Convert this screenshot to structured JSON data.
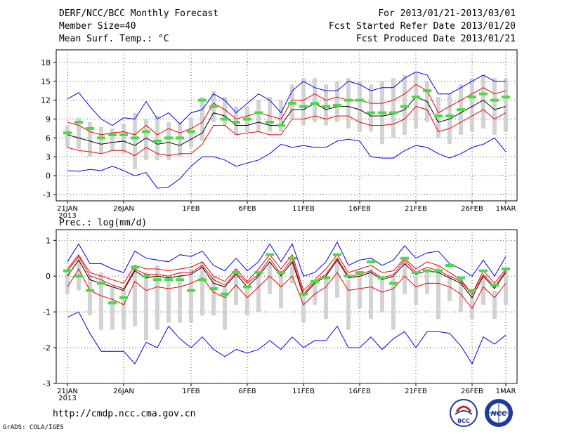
{
  "header": {
    "title": "DERF/NCC/BCC Monthly Forecast",
    "member_size": "Member Size=40",
    "variable_top": "Mean Surf. Temp.: °C",
    "forecast_range": "For 2013/01/21-2013/03/01",
    "started_date": "Fcst Started Refer Date 2013/01/20",
    "produced_date": "Fcst Produced Date 2013/01/21"
  },
  "footer": {
    "url": "http://cmdp.ncc.cma.gov.cn",
    "grads": "GrADS: COLA/IGES",
    "logo_bcc": "BCC",
    "logo_ncc": "NCC"
  },
  "colors": {
    "max_min": "#0000ee",
    "spread": "#ee0000",
    "mean": "#000000",
    "obs": "#44dd44",
    "box": "#d3d3d3",
    "grid": "#555555"
  },
  "chart_data": [
    {
      "type": "line",
      "title": "Mean Surf. Temp.: °C",
      "x_tick_labels": [
        "21JAN",
        "26JAN",
        "1FEB",
        "6FEB",
        "11FEB",
        "16FEB",
        "21FEB",
        "26FEB",
        "1MAR"
      ],
      "x_year_label": "2013",
      "x_tick_days": [
        0,
        5,
        11,
        16,
        21,
        26,
        31,
        36,
        39
      ],
      "n_days": 40,
      "yticks": [
        -3,
        0,
        3,
        6,
        9,
        12,
        15,
        18
      ],
      "ylim": [
        -4,
        20
      ],
      "series": [
        {
          "name": "max",
          "values": [
            12.2,
            13.2,
            11.0,
            9.0,
            8.0,
            9.2,
            9.0,
            11.8,
            9.0,
            10.0,
            8.2,
            10.0,
            10.5,
            13.0,
            12.0,
            10.0,
            11.5,
            13.0,
            12.0,
            10.0,
            13.5,
            15.0,
            14.0,
            13.5,
            13.5,
            15.0,
            14.5,
            13.5,
            14.0,
            14.0,
            15.5,
            16.5,
            16.0,
            13.0,
            13.0,
            14.0,
            15.0,
            16.0,
            15.0,
            15.0
          ]
        },
        {
          "name": "upper",
          "values": [
            8.5,
            8.0,
            7.0,
            6.5,
            6.8,
            7.0,
            6.5,
            8.0,
            6.5,
            7.5,
            6.8,
            7.5,
            8.5,
            11.5,
            10.5,
            9.0,
            9.5,
            10.0,
            9.5,
            9.0,
            12.0,
            12.0,
            13.0,
            12.0,
            12.5,
            12.0,
            12.0,
            11.5,
            11.5,
            12.0,
            13.0,
            14.5,
            13.5,
            10.0,
            11.0,
            12.0,
            13.0,
            14.0,
            13.0,
            13.5
          ]
        },
        {
          "name": "mean",
          "values": [
            6.5,
            6.0,
            5.5,
            5.0,
            5.3,
            5.5,
            4.8,
            6.0,
            5.0,
            5.3,
            4.8,
            5.8,
            6.8,
            10.0,
            9.5,
            8.0,
            8.0,
            8.5,
            8.0,
            8.0,
            10.5,
            10.5,
            11.5,
            10.5,
            11.0,
            11.0,
            10.5,
            9.5,
            9.5,
            9.8,
            10.5,
            12.5,
            11.8,
            8.5,
            9.0,
            10.0,
            11.0,
            12.0,
            10.5,
            11.0
          ]
        },
        {
          "name": "lower",
          "values": [
            4.5,
            4.0,
            3.8,
            3.5,
            4.0,
            4.0,
            3.2,
            4.5,
            3.5,
            3.2,
            3.5,
            3.5,
            5.0,
            8.0,
            8.0,
            6.5,
            6.8,
            7.0,
            6.5,
            6.5,
            9.0,
            9.0,
            9.5,
            9.0,
            9.5,
            9.5,
            8.5,
            8.0,
            8.0,
            8.2,
            9.0,
            11.0,
            10.5,
            7.0,
            7.5,
            8.5,
            9.5,
            10.5,
            9.0,
            10.0
          ]
        },
        {
          "name": "min",
          "values": [
            0.8,
            0.7,
            1.0,
            0.8,
            1.5,
            0.8,
            0.0,
            0.5,
            -2.0,
            -1.8,
            -0.5,
            1.5,
            3.0,
            3.0,
            2.5,
            1.5,
            2.0,
            2.5,
            3.5,
            5.0,
            4.5,
            4.8,
            4.5,
            4.5,
            5.5,
            5.8,
            5.5,
            3.0,
            2.8,
            2.8,
            4.0,
            4.8,
            4.5,
            3.5,
            2.8,
            3.5,
            4.5,
            5.0,
            6.0,
            3.8
          ]
        }
      ],
      "box_high": [
        8.0,
        9.2,
        8.5,
        7.8,
        7.5,
        8.2,
        10.0,
        9.0,
        9.5,
        8.5,
        8.5,
        9.2,
        12.5,
        13.5,
        12.5,
        11.0,
        11.0,
        12.0,
        12.5,
        12.0,
        14.5,
        15.5,
        15.5,
        14.5,
        15.0,
        15.5,
        15.0,
        14.5,
        15.0,
        15.5,
        16.0,
        16.5,
        15.0,
        12.5,
        13.0,
        14.5,
        15.5,
        16.0,
        15.5,
        15.5
      ],
      "box_low": [
        4.5,
        4.2,
        3.0,
        3.5,
        4.0,
        3.5,
        1.0,
        2.5,
        2.5,
        2.5,
        3.0,
        4.5,
        5.5,
        8.5,
        8.0,
        6.5,
        7.0,
        7.0,
        7.0,
        7.0,
        9.0,
        8.0,
        8.5,
        8.0,
        8.5,
        7.5,
        7.0,
        7.0,
        5.0,
        6.0,
        6.5,
        7.5,
        8.5,
        6.0,
        5.0,
        6.5,
        7.0,
        7.5,
        6.5,
        7.0
      ],
      "observed": [
        6.8,
        8.5,
        7.5,
        6.0,
        6.5,
        6.5,
        6.0,
        7.0,
        5.5,
        6.0,
        6.0,
        7.0,
        12.0,
        11.0,
        9.0,
        8.5,
        9.0,
        10.0,
        8.5,
        8.0,
        11.5,
        11.0,
        11.5,
        11.0,
        11.2,
        12.0,
        12.0,
        10.0,
        10.0,
        10.0,
        11.0,
        12.5,
        13.5,
        9.5,
        9.5,
        10.5,
        12.5,
        13.0,
        12.0,
        12.5
      ]
    },
    {
      "type": "line",
      "title": "Prec.: log(mm/d)",
      "x_tick_labels": [
        "21JAN",
        "26JAN",
        "1FEB",
        "6FEB",
        "11FEB",
        "16FEB",
        "21FEB",
        "26FEB",
        "1MAR"
      ],
      "x_year_label": "2013",
      "x_tick_days": [
        0,
        5,
        11,
        16,
        21,
        26,
        31,
        36,
        39
      ],
      "n_days": 40,
      "yticks": [
        -3,
        -2,
        -1,
        0,
        1
      ],
      "ylim": [
        -3,
        1.3
      ],
      "series": [
        {
          "name": "max",
          "values": [
            0.4,
            0.9,
            0.35,
            0.35,
            0.2,
            0.1,
            0.7,
            0.5,
            0.45,
            0.4,
            0.6,
            0.55,
            0.7,
            0.3,
            0.15,
            0.5,
            0.15,
            0.4,
            0.9,
            0.4,
            0.9,
            0.0,
            0.1,
            0.4,
            0.95,
            0.3,
            0.45,
            0.5,
            0.3,
            0.45,
            0.85,
            0.5,
            0.65,
            0.7,
            0.35,
            0.2,
            0.0,
            0.45,
            0.0,
            0.55
          ]
        },
        {
          "name": "upper",
          "values": [
            0.2,
            0.6,
            0.1,
            0.0,
            -0.1,
            -0.2,
            0.3,
            0.2,
            0.2,
            0.15,
            0.2,
            0.25,
            0.4,
            0.0,
            -0.15,
            0.2,
            -0.15,
            0.2,
            0.6,
            0.2,
            0.6,
            -0.4,
            -0.1,
            0.2,
            0.6,
            0.1,
            0.2,
            0.3,
            0.1,
            0.15,
            0.5,
            0.2,
            0.4,
            0.3,
            0.1,
            -0.1,
            -0.5,
            0.15,
            -0.2,
            0.2
          ]
        },
        {
          "name": "mean",
          "values": [
            0.0,
            0.45,
            -0.1,
            -0.2,
            -0.3,
            -0.4,
            0.15,
            -0.05,
            0.0,
            -0.05,
            0.0,
            0.05,
            0.25,
            -0.2,
            -0.3,
            0.05,
            -0.3,
            0.0,
            0.4,
            0.0,
            0.4,
            -0.55,
            -0.2,
            0.0,
            0.45,
            -0.05,
            0.0,
            0.1,
            -0.1,
            0.0,
            0.35,
            0.05,
            0.15,
            0.1,
            -0.05,
            -0.2,
            -0.6,
            0.0,
            -0.35,
            0.1
          ]
        },
        {
          "name": "lower",
          "values": [
            -0.3,
            0.2,
            -0.4,
            -0.55,
            -0.65,
            -0.8,
            -0.15,
            -0.4,
            -0.3,
            -0.35,
            -0.3,
            -0.2,
            -0.05,
            -0.45,
            -0.6,
            -0.25,
            -0.6,
            -0.3,
            0.0,
            -0.3,
            0.0,
            -0.8,
            -0.5,
            -0.3,
            0.1,
            -0.4,
            -0.35,
            -0.3,
            -0.45,
            -0.35,
            0.0,
            -0.3,
            -0.2,
            -0.2,
            -0.3,
            -0.5,
            -0.9,
            -0.3,
            -0.6,
            -0.2
          ]
        },
        {
          "name": "min",
          "values": [
            -1.15,
            -1.0,
            -1.6,
            -2.1,
            -2.1,
            -2.1,
            -2.45,
            -1.85,
            -2.0,
            -1.4,
            -1.75,
            -2.0,
            -1.7,
            -2.05,
            -2.25,
            -2.05,
            -2.15,
            -2.05,
            -1.8,
            -2.05,
            -1.7,
            -2.0,
            -1.8,
            -1.8,
            -1.4,
            -2.0,
            -2.0,
            -1.7,
            -2.05,
            -1.75,
            -1.55,
            -2.0,
            -1.55,
            -1.55,
            -1.6,
            -1.95,
            -2.45,
            -1.7,
            -1.9,
            -1.65
          ]
        },
        {
          "name": "secondary",
          "values": [
            0.15,
            0.55,
            0.0,
            -0.1,
            -0.25,
            -0.35,
            0.2,
            0.05,
            0.05,
            0.0,
            0.1,
            0.1,
            0.3,
            -0.1,
            -0.25,
            0.1,
            -0.2,
            0.05,
            0.5,
            0.05,
            0.5,
            -0.5,
            -0.15,
            0.05,
            0.5,
            0.0,
            0.05,
            0.15,
            -0.05,
            0.05,
            0.45,
            0.1,
            0.25,
            0.15,
            0.0,
            -0.15,
            -0.5,
            0.05,
            -0.3,
            0.15
          ]
        }
      ],
      "box_high": [
        0.1,
        0.5,
        0.0,
        0.1,
        -0.3,
        -0.4,
        0.3,
        0.1,
        0.3,
        0.0,
        0.1,
        0.2,
        0.4,
        0.0,
        -0.3,
        0.2,
        -0.3,
        0.1,
        0.4,
        0.0,
        0.4,
        -0.5,
        -0.2,
        0.0,
        0.5,
        -0.1,
        0.0,
        0.2,
        -0.1,
        0.0,
        0.4,
        0.0,
        0.2,
        0.3,
        0.0,
        -0.1,
        -0.5,
        0.0,
        -0.4,
        0.2
      ],
      "box_low": [
        -0.5,
        -0.4,
        -1.1,
        -1.5,
        -1.5,
        -1.5,
        -1.4,
        -1.8,
        -1.5,
        -1.3,
        -1.3,
        -1.3,
        -1.1,
        -1.1,
        -1.5,
        -0.8,
        -1.1,
        -1.0,
        -0.5,
        -0.9,
        -0.2,
        -1.3,
        -0.8,
        -1.2,
        -0.6,
        -1.5,
        -0.9,
        -1.2,
        -1.0,
        -1.5,
        -0.5,
        -0.8,
        -0.5,
        -1.2,
        -0.7,
        -1.0,
        -1.2,
        -0.8,
        -1.2,
        -0.8
      ],
      "observed": [
        0.15,
        0.0,
        -0.4,
        -0.2,
        -0.75,
        -0.6,
        0.25,
        0.0,
        -0.1,
        -0.1,
        -0.1,
        -0.4,
        -0.1,
        -0.35,
        -0.5,
        0.1,
        -0.3,
        0.1,
        0.6,
        0.1,
        0.5,
        -0.5,
        -0.15,
        -0.05,
        0.6,
        0.0,
        0.1,
        0.4,
        -0.05,
        -0.2,
        0.5,
        0.1,
        0.15,
        0.15,
        0.3,
        -0.05,
        -0.4,
        0.15,
        -0.25,
        0.2
      ]
    }
  ]
}
